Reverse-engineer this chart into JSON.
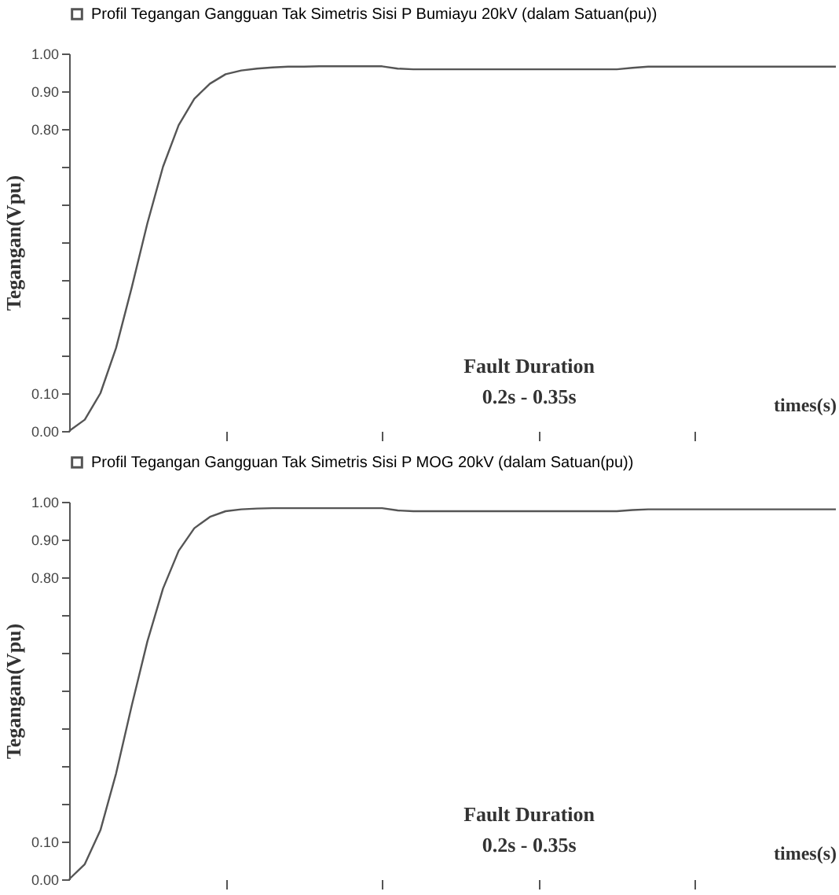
{
  "chart_data": [
    {
      "type": "line",
      "xlabel": "times(s)",
      "ylabel": "Tegangan(Vpu)",
      "annotations": [
        "Fault Duration",
        "0.2s - 0.35s"
      ],
      "legend": "top",
      "ylim": [
        0,
        1
      ],
      "yticks": [
        {
          "value": 0,
          "label": "0.00"
        },
        {
          "value": 0.1,
          "label": "0.10"
        },
        {
          "value": 0.2,
          "label": null
        },
        {
          "value": 0.3,
          "label": null
        },
        {
          "value": 0.4,
          "label": null
        },
        {
          "value": 0.5,
          "label": null
        },
        {
          "value": 0.6,
          "label": null
        },
        {
          "value": 0.7,
          "label": null
        },
        {
          "value": 0.8,
          "label": "0.80"
        },
        {
          "value": 0.9,
          "label": "0.90"
        },
        {
          "value": 1,
          "label": "1.00"
        }
      ],
      "grid": false,
      "categories": [
        null,
        null,
        null,
        null,
        null,
        null,
        null,
        null,
        null,
        null,
        null,
        null,
        null,
        null,
        null,
        null,
        null,
        null,
        null,
        null,
        null,
        null,
        null,
        null,
        null,
        null,
        null,
        null,
        null,
        null,
        null,
        null,
        null,
        null,
        null,
        null,
        null,
        null,
        null,
        null,
        null,
        null,
        null,
        null,
        null,
        null,
        null,
        null,
        null,
        null
      ],
      "series": [
        {
          "name": "Profil Tegangan Gangguan Tak Simetris Sisi P Bumiayu 20kV (dalam Satuan(pu))",
          "color": "#555555",
          "values": [
            0,
            0.03,
            0.1,
            0.22,
            0.38,
            0.55,
            0.7,
            0.81,
            0.88,
            0.92,
            0.945,
            0.955,
            0.96,
            0.963,
            0.965,
            0.965,
            0.966,
            0.966,
            0.966,
            0.966,
            0.966,
            0.96,
            0.958,
            0.958,
            0.958,
            0.958,
            0.958,
            0.958,
            0.958,
            0.958,
            0.958,
            0.958,
            0.958,
            0.958,
            0.958,
            0.958,
            0.962,
            0.965,
            0.965,
            0.965,
            0.965,
            0.965,
            0.965,
            0.965,
            0.965,
            0.965,
            0.965,
            0.965,
            0.965,
            0.965
          ]
        }
      ]
    },
    {
      "type": "line",
      "xlabel": "times(s)",
      "ylabel": "Tegangan(Vpu)",
      "annotations": [
        "Fault Duration",
        "0.2s - 0.35s"
      ],
      "legend": "top",
      "ylim": [
        0,
        1
      ],
      "yticks": [
        {
          "value": 0,
          "label": "0.00"
        },
        {
          "value": 0.1,
          "label": "0.10"
        },
        {
          "value": 0.2,
          "label": null
        },
        {
          "value": 0.3,
          "label": null
        },
        {
          "value": 0.4,
          "label": null
        },
        {
          "value": 0.5,
          "label": null
        },
        {
          "value": 0.6,
          "label": null
        },
        {
          "value": 0.7,
          "label": null
        },
        {
          "value": 0.8,
          "label": "0.80"
        },
        {
          "value": 0.9,
          "label": "0.90"
        },
        {
          "value": 1,
          "label": "1.00"
        }
      ],
      "grid": false,
      "categories": [
        null,
        null,
        null,
        null,
        null,
        null,
        null,
        null,
        null,
        null,
        null,
        null,
        null,
        null,
        null,
        null,
        null,
        null,
        null,
        null,
        null,
        null,
        null,
        null,
        null,
        null,
        null,
        null,
        null,
        null,
        null,
        null,
        null,
        null,
        null,
        null,
        null,
        null,
        null,
        null,
        null,
        null,
        null,
        null,
        null,
        null,
        null,
        null,
        null,
        null
      ],
      "series": [
        {
          "name": "Profil Tegangan Gangguan Tak Simetris Sisi P MOG 20kV (dalam Satuan(pu))",
          "color": "#555555",
          "values": [
            0,
            0.04,
            0.13,
            0.28,
            0.46,
            0.63,
            0.77,
            0.87,
            0.93,
            0.96,
            0.975,
            0.98,
            0.982,
            0.983,
            0.983,
            0.983,
            0.983,
            0.983,
            0.983,
            0.983,
            0.983,
            0.977,
            0.975,
            0.975,
            0.975,
            0.975,
            0.975,
            0.975,
            0.975,
            0.975,
            0.975,
            0.975,
            0.975,
            0.975,
            0.975,
            0.975,
            0.978,
            0.98,
            0.98,
            0.98,
            0.98,
            0.98,
            0.98,
            0.98,
            0.98,
            0.98,
            0.98,
            0.98,
            0.98,
            0.98
          ]
        }
      ]
    }
  ]
}
